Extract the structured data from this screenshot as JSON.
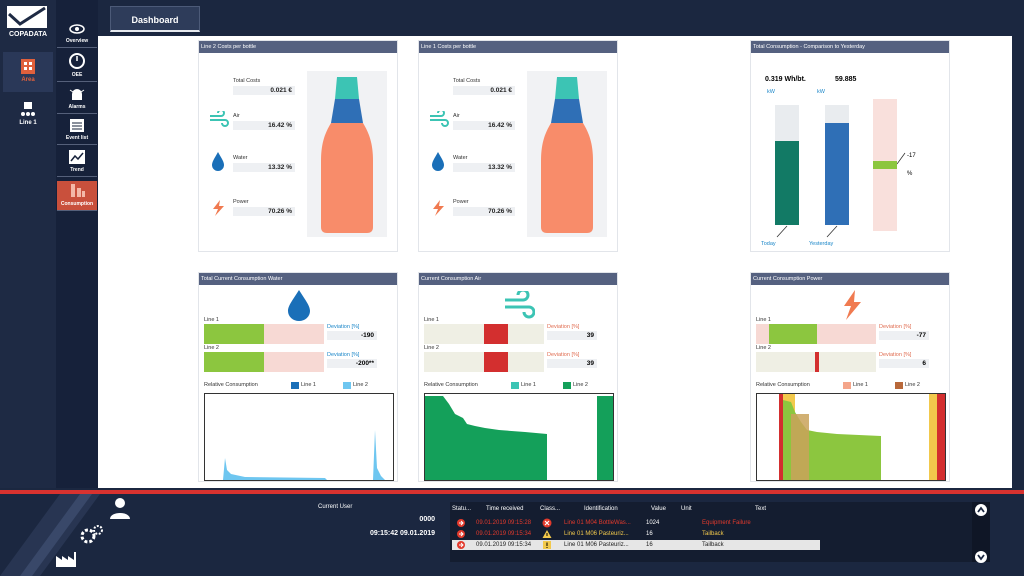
{
  "app": {
    "logo_text": "COPADATA",
    "tab_label": "Dashboard"
  },
  "nav_primary": [
    {
      "label": "Area",
      "icon": "building-icon",
      "active": true
    },
    {
      "label": "Line 1",
      "icon": "line-icon",
      "active": false
    }
  ],
  "nav_secondary": [
    {
      "label": "Overview",
      "icon": "eye-icon"
    },
    {
      "label": "OEE",
      "icon": "gauge-icon"
    },
    {
      "label": "Alarms",
      "icon": "alarm-icon"
    },
    {
      "label": "Event list",
      "icon": "list-icon"
    },
    {
      "label": "Trend",
      "icon": "trend-icon"
    },
    {
      "label": "Consumption",
      "icon": "consumption-icon",
      "active": true
    }
  ],
  "cost_panels": [
    {
      "title": "Line 2 Costs per bottle",
      "total_label": "Total Costs",
      "total": "0.021 €",
      "air_label": "Air",
      "air": "16.42 %",
      "water_label": "Water",
      "water": "13.32 %",
      "power_label": "Power",
      "power": "70.26 %"
    },
    {
      "title": "Line 1 Costs per bottle",
      "total_label": "Total Costs",
      "total": "0.021 €",
      "air_label": "Air",
      "air": "16.42 %",
      "water_label": "Water",
      "water": "13.32 %",
      "power_label": "Power",
      "power": "70.26 %"
    }
  ],
  "comparison": {
    "title": "Total Consumption - Comparison to Yesterday",
    "today_value": "0.319 Wh/bt.",
    "yesterday_value": "59.885",
    "today_unit": "kW",
    "yesterday_unit": "kW",
    "today_label": "Today",
    "yesterday_label": "Yesterday",
    "delta_value": "-17",
    "delta_unit": "%",
    "today_fill": 0.7,
    "yesterday_fill": 0.85
  },
  "consumption_panels": [
    {
      "title": "Total Current Consumption Water",
      "icon": "water-drop-icon",
      "line1_label": "Line 1",
      "line2_label": "Line 2",
      "dev_label": "Deviation [%]",
      "line1_dev": "-190",
      "line2_dev": "-200**",
      "rel_label": "Relative Consumption",
      "legend1": "Line 1",
      "legend2": "Line 2",
      "legend1_color": "#1a6fb8",
      "legend2_color": "#6ec6f0"
    },
    {
      "title": "Current Consumption Air",
      "icon": "wind-icon",
      "line1_label": "Line 1",
      "line2_label": "Line 2",
      "dev_label": "Deviation [%]",
      "line1_dev": "39",
      "line2_dev": "39",
      "rel_label": "Relative Consumption",
      "legend1": "Line 1",
      "legend2": "Line 2",
      "legend1_color": "#3cc4b4",
      "legend2_color": "#14a05a"
    },
    {
      "title": "Current Consumption Power",
      "icon": "lightning-icon",
      "line1_label": "Line 1",
      "line2_label": "Line 2",
      "dev_label": "Deviation [%]",
      "line1_dev": "-77",
      "line2_dev": "6",
      "rel_label": "Relative Consumption",
      "legend1": "Line 1",
      "legend2": "Line 2",
      "legend1_color": "#f4a58a",
      "legend2_color": "#b8683a"
    }
  ],
  "user": {
    "label": "Current User",
    "id": "0000",
    "datetime": "09:15:42 09.01.2019"
  },
  "alarms": {
    "headers": [
      "Statu...",
      "Time received",
      "Class...",
      "Identification",
      "Value",
      "Unit",
      "Text"
    ],
    "rows": [
      {
        "time": "09.01.2019 09:15:28",
        "ident": "Line 01 M04 BottleWas...",
        "value": "1024",
        "unit": "",
        "text": "Equipment Failure"
      },
      {
        "time": "09.01.2019 09:15:34",
        "ident": "Line 01 M06 Pasteuriz...",
        "value": "16",
        "unit": "",
        "text": "Tailback"
      },
      {
        "time": "09.01.2019 09:15:34",
        "ident": "Line 01 M06 Pasteuriz...",
        "value": "16",
        "unit": "",
        "text": "Tailback"
      }
    ]
  },
  "colors": {
    "accent_red": "#d7322f",
    "nav_bg": "#1b2740",
    "bottle_body": "#f88c6a",
    "bottle_neck": "#2f6fb6",
    "bottle_cap": "#3cc4b4",
    "bar_green": "#8cc63f"
  }
}
